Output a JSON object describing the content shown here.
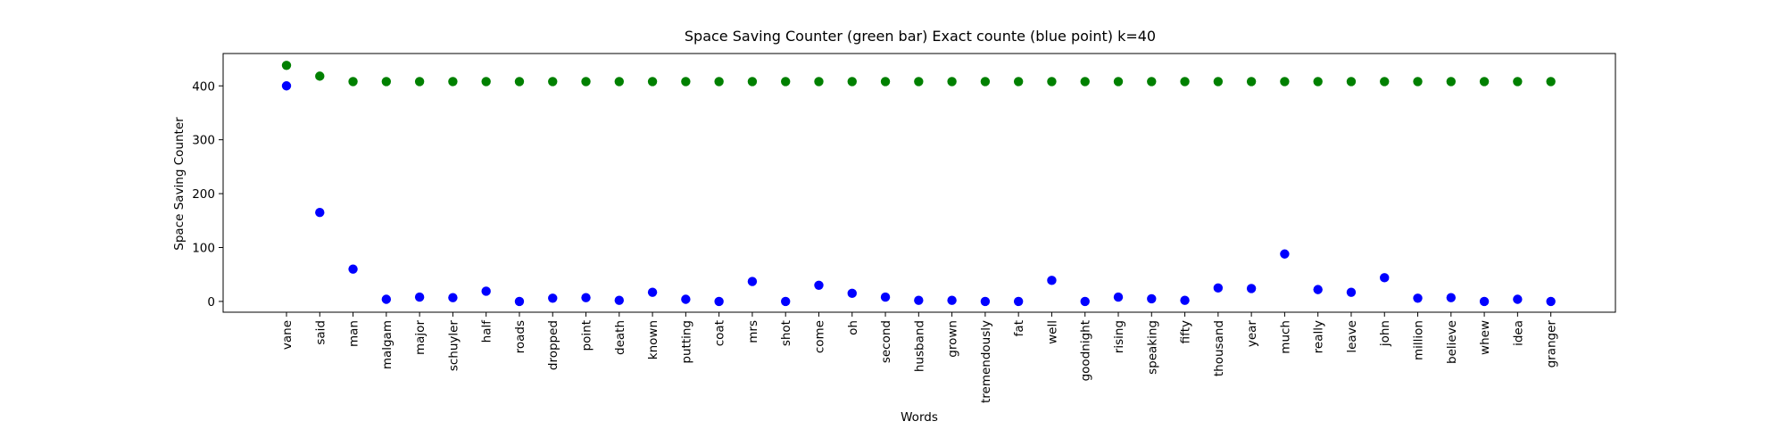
{
  "chart_data": {
    "type": "scatter",
    "title": "Space Saving Counter (green bar)  Exact counte (blue point) k=40",
    "xlabel": "Words",
    "ylabel": "Space Saving Counter",
    "ylim": [
      -20,
      460
    ],
    "yticks": [
      0,
      100,
      200,
      300,
      400
    ],
    "grid": false,
    "categories": [
      "vane",
      "said",
      "man",
      "malgam",
      "major",
      "schuyler",
      "half",
      "roads",
      "dropped",
      "point",
      "death",
      "known",
      "putting",
      "coat",
      "mrs",
      "shot",
      "come",
      "oh",
      "second",
      "husband",
      "grown",
      "tremendously",
      "fat",
      "well",
      "goodnight",
      "rising",
      "speaking",
      "fifty",
      "thousand",
      "year",
      "much",
      "really",
      "leave",
      "john",
      "million",
      "believe",
      "whew",
      "idea",
      "granger"
    ],
    "series": [
      {
        "color": "#008000",
        "values": [
          438,
          418,
          408,
          408,
          408,
          408,
          408,
          408,
          408,
          408,
          408,
          408,
          408,
          408,
          408,
          408,
          408,
          408,
          408,
          408,
          408,
          408,
          408,
          408,
          408,
          408,
          408,
          408,
          408,
          408,
          408,
          408,
          408,
          408,
          408,
          408,
          408,
          408,
          408
        ]
      },
      {
        "color": "#0000ff",
        "values": [
          400,
          165,
          60,
          4,
          8,
          7,
          19,
          0,
          6,
          7,
          2,
          17,
          4,
          0,
          37,
          0,
          30,
          15,
          8,
          2,
          2,
          0,
          0,
          39,
          0,
          8,
          5,
          2,
          25,
          24,
          88,
          22,
          17,
          44,
          6,
          7,
          0,
          4,
          0
        ]
      }
    ]
  }
}
